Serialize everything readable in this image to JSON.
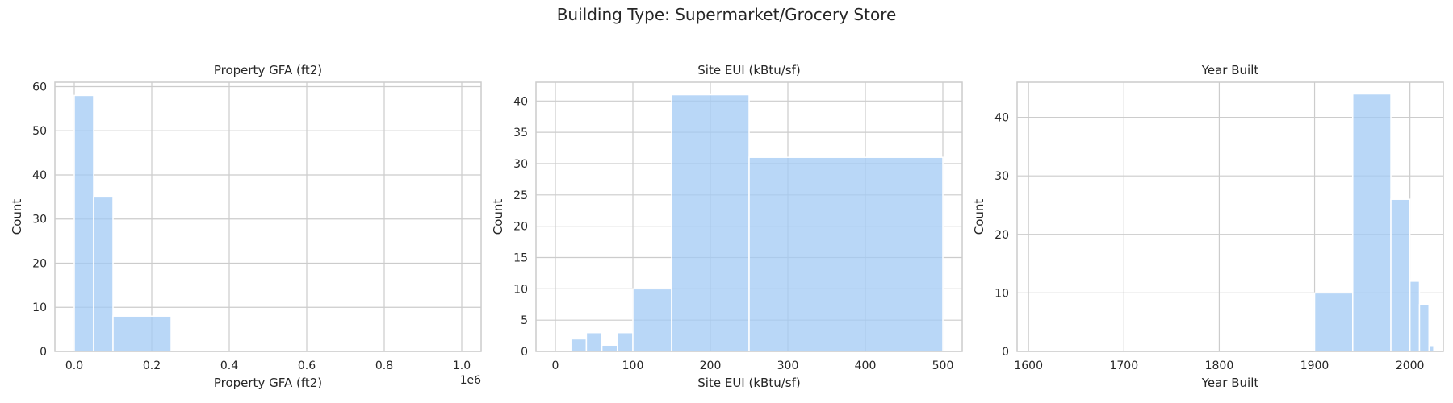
{
  "suptitle": "Building Type: Supermarket/Grocery Store",
  "style": {
    "bar_color": "#a1c9f4",
    "grid_color": "#cccccc",
    "background": "#ffffff"
  },
  "chart_data": [
    {
      "type": "histogram",
      "title": "Property GFA (ft2)",
      "xlabel": "Property GFA (ft2)",
      "ylabel": "Count",
      "x_offset_text": "1e6",
      "xlim": [
        -0.05,
        1.05
      ],
      "ylim": [
        0,
        61
      ],
      "xticks": [
        0.0,
        0.2,
        0.4,
        0.6,
        0.8,
        1.0
      ],
      "xtick_labels": [
        "0.0",
        "0.2",
        "0.4",
        "0.6",
        "0.8",
        "1.0"
      ],
      "yticks": [
        0,
        10,
        20,
        30,
        40,
        50,
        60
      ],
      "ytick_labels": [
        "0",
        "10",
        "20",
        "30",
        "40",
        "50",
        "60"
      ],
      "bins": [
        {
          "x0": 0.0,
          "x1": 0.05,
          "count": 58
        },
        {
          "x0": 0.05,
          "x1": 0.1,
          "count": 35
        },
        {
          "x0": 0.1,
          "x1": 0.25,
          "count": 8
        }
      ]
    },
    {
      "type": "histogram",
      "title": "Site EUI (kBtu/sf)",
      "xlabel": "Site EUI (kBtu/sf)",
      "ylabel": "Count",
      "xlim": [
        -25,
        525
      ],
      "ylim": [
        0,
        43
      ],
      "xticks": [
        0,
        100,
        200,
        300,
        400,
        500
      ],
      "xtick_labels": [
        "0",
        "100",
        "200",
        "300",
        "400",
        "500"
      ],
      "yticks": [
        0,
        5,
        10,
        15,
        20,
        25,
        30,
        35,
        40
      ],
      "ytick_labels": [
        "0",
        "5",
        "10",
        "15",
        "20",
        "25",
        "30",
        "35",
        "40"
      ],
      "bins": [
        {
          "x0": 20,
          "x1": 40,
          "count": 2
        },
        {
          "x0": 40,
          "x1": 60,
          "count": 3
        },
        {
          "x0": 60,
          "x1": 80,
          "count": 1
        },
        {
          "x0": 80,
          "x1": 100,
          "count": 3
        },
        {
          "x0": 100,
          "x1": 150,
          "count": 10
        },
        {
          "x0": 150,
          "x1": 250,
          "count": 41
        },
        {
          "x0": 250,
          "x1": 500,
          "count": 31
        }
      ]
    },
    {
      "type": "histogram",
      "title": "Year Built",
      "xlabel": "Year Built",
      "ylabel": "Count",
      "xlim": [
        1588,
        2035
      ],
      "ylim": [
        0,
        46
      ],
      "xticks": [
        1600,
        1700,
        1800,
        1900,
        2000
      ],
      "xtick_labels": [
        "1600",
        "1700",
        "1800",
        "1900",
        "2000"
      ],
      "yticks": [
        0,
        10,
        20,
        30,
        40
      ],
      "ytick_labels": [
        "0",
        "10",
        "20",
        "30",
        "40"
      ],
      "bins": [
        {
          "x0": 1900,
          "x1": 1940,
          "count": 10
        },
        {
          "x0": 1940,
          "x1": 1980,
          "count": 44
        },
        {
          "x0": 1980,
          "x1": 2000,
          "count": 26
        },
        {
          "x0": 2000,
          "x1": 2010,
          "count": 12
        },
        {
          "x0": 2010,
          "x1": 2020,
          "count": 8
        },
        {
          "x0": 2020,
          "x1": 2025,
          "count": 1
        }
      ]
    }
  ]
}
